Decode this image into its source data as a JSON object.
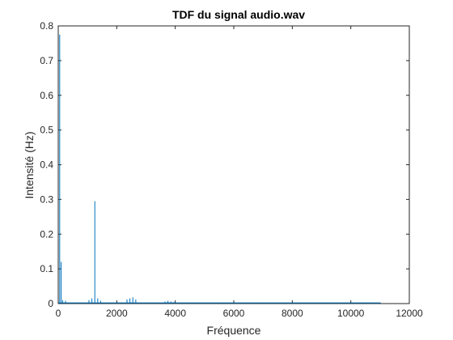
{
  "chart_data": {
    "type": "line",
    "title": "TDF du signal audio.wav",
    "xlabel": "Fréquence",
    "ylabel": "Intensité (Hz)",
    "xlim": [
      0,
      12000
    ],
    "ylim": [
      0,
      0.8
    ],
    "xticks": [
      0,
      2000,
      4000,
      6000,
      8000,
      10000,
      12000
    ],
    "xtick_labels": [
      "0",
      "2000",
      "4000",
      "6000",
      "8000",
      "10000",
      "12000"
    ],
    "yticks": [
      0,
      0.1,
      0.2,
      0.3,
      0.4,
      0.5,
      0.6,
      0.7,
      0.8
    ],
    "ytick_labels": [
      "0",
      "0.1",
      "0.2",
      "0.3",
      "0.4",
      "0.5",
      "0.6",
      "0.7",
      "0.8"
    ],
    "grid": false,
    "line_color": "#0072bd",
    "x_range_of_data": [
      0,
      11025
    ],
    "baseline": 0.002,
    "series": [
      {
        "x": [
          50,
          100,
          150,
          250,
          1050,
          1150,
          1250,
          1350,
          1450,
          2350,
          2450,
          2550,
          2650,
          3650,
          3750,
          3850,
          3950,
          5500,
          7000,
          9000,
          10500
        ],
        "y": [
          0.775,
          0.12,
          0.01,
          0.008,
          0.01,
          0.015,
          0.295,
          0.015,
          0.008,
          0.012,
          0.015,
          0.018,
          0.012,
          0.006,
          0.008,
          0.006,
          0.004,
          0.003,
          0.003,
          0.003,
          0.003
        ]
      }
    ]
  }
}
